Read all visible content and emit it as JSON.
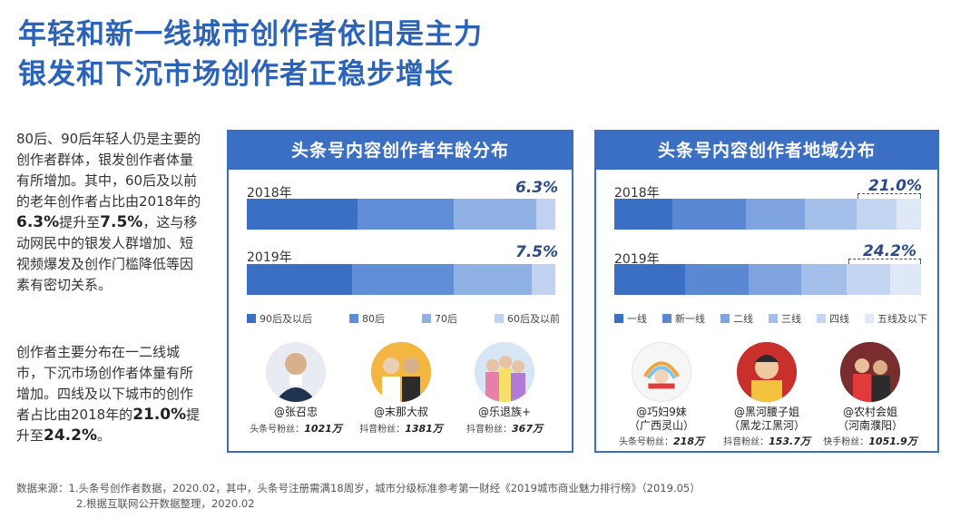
{
  "title": {
    "line1": "年轻和新一线城市创作者依旧是主力",
    "line2": "银发和下沉市场创作者正稳步增长"
  },
  "text": {
    "para1_a": "80后、90后年轻人仍是主要的创作者群体，银发创作者体量有所增加。其中，60后及以前的老年创作者占比由2018年的",
    "para1_b": "6.3%",
    "para1_c": "提升至",
    "para1_d": "7.5%",
    "para1_e": "，这与移动网民中的银发人群增加、短视频爆发及创作门槛降低等因素有密切关系。",
    "para2_a": "创作者主要分布在一二线城市，下沉市场创作者体量有所增加。四线及以下城市的创作者占比由2018年的",
    "para2_b": "21.0%",
    "para2_c": "提升至",
    "para2_d": "24.2%",
    "para2_e": "。"
  },
  "chart_data": [
    {
      "type": "bar",
      "orientation": "horizontal-stacked",
      "title": "头条号内容创作者年龄分布",
      "categories": [
        "2018年",
        "2019年"
      ],
      "series": [
        {
          "name": "90后及以后",
          "values": [
            0.36,
            0.34
          ]
        },
        {
          "name": "80后",
          "values": [
            0.31,
            0.33
          ]
        },
        {
          "name": "70后",
          "values": [
            0.267,
            0.255
          ]
        },
        {
          "name": "60后及以前",
          "values": [
            0.063,
            0.075
          ]
        }
      ],
      "annotations": [
        "6.3%",
        "7.5%"
      ],
      "colors": [
        "#3b6fc3",
        "#5f8dd6",
        "#8fb0e3",
        "#c0d2f0"
      ],
      "legend": "bottom"
    },
    {
      "type": "bar",
      "orientation": "horizontal-stacked",
      "title": "头条号内容创作者地域分布",
      "categories": [
        "2018年",
        "2019年"
      ],
      "series": [
        {
          "name": "一线",
          "values": [
            0.19,
            0.23
          ]
        },
        {
          "name": "新一线",
          "values": [
            0.24,
            0.21
          ]
        },
        {
          "name": "二线",
          "values": [
            0.19,
            0.17
          ]
        },
        {
          "name": "三线",
          "values": [
            0.17,
            0.15
          ]
        },
        {
          "name": "四线",
          "values": [
            0.13,
            0.14
          ]
        },
        {
          "name": "五线及以下",
          "values": [
            0.08,
            0.102
          ]
        }
      ],
      "annotations": [
        "21.0%",
        "24.2%"
      ],
      "colors": [
        "#3b6fc3",
        "#5a88d3",
        "#7ea3df",
        "#a3bfe9",
        "#c3d5f1",
        "#dfe8f7"
      ],
      "legend": "bottom"
    }
  ],
  "people": [
    {
      "name": "@张召忠",
      "sub": "",
      "fans_label": "头条号粉丝：",
      "fans": "1021万"
    },
    {
      "name": "@末那大叔",
      "sub": "",
      "fans_label": "抖音粉丝：",
      "fans": "1381万"
    },
    {
      "name": "@乐退族+",
      "sub": "",
      "fans_label": "抖音粉丝：",
      "fans": "367万"
    },
    {
      "name": "@巧妇9妹",
      "sub": "（广西灵山）",
      "fans_label": "头条号粉丝：",
      "fans": "218万"
    },
    {
      "name": "@黑河腰子姐",
      "sub": "（黑龙江黑河）",
      "fans_label": "抖音粉丝：",
      "fans": "153.7万"
    },
    {
      "name": "@农村会姐",
      "sub": "（河南濮阳）",
      "fans_label": "快手粉丝：",
      "fans": "1051.9万"
    }
  ],
  "source": {
    "line1": "数据来源：1.头条号创作者数据，2020.02，其中，头条号注册需满18周岁，城市分级标准参考第一财经《2019城市商业魅力排行榜》（2019.05）",
    "line2": "2.根据互联网公开数据整理，2020.02"
  }
}
